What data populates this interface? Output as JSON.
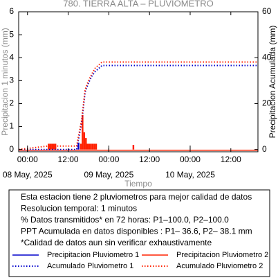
{
  "chart_data": {
    "type": "line",
    "title": "780. TIERRA ALTA – PLUVIOMETRO",
    "x_label": "Tiempo",
    "y_label": "Precipitacion 1 minutos (mm)",
    "y2_label": "Precipitacion Acumulada (mm)",
    "xlim": [
      -2.6,
      68
    ],
    "xticks": [
      {
        "value": 0,
        "label": "00:00"
      },
      {
        "value": 12,
        "label": "12:00"
      },
      {
        "value": 24,
        "label": "00:00"
      },
      {
        "value": 36,
        "label": "12:00"
      },
      {
        "value": 48,
        "label": "00:00"
      },
      {
        "value": 60,
        "label": "12:00"
      }
    ],
    "xdates": [
      {
        "value": 0,
        "label": "08 May, 2025"
      },
      {
        "value": 24,
        "label": "09 May, 2025"
      },
      {
        "value": 48,
        "label": "10 May, 2025"
      }
    ],
    "ylim": [
      -0.1,
      6
    ],
    "yticks": [
      0,
      1,
      2,
      3,
      4,
      5,
      6
    ],
    "y2lim": [
      -1,
      60
    ],
    "y2ticks": [
      0,
      20,
      40,
      60
    ],
    "series": [
      {
        "name": "Precipitacion Pluviometro 1",
        "color": "#0000cc",
        "style": "bar",
        "x": [
          14.8
        ],
        "values": [
          0.3
        ]
      },
      {
        "name": "Precipitacion Pluviometro 2",
        "color": "#ff2000",
        "style": "bar",
        "x": [
          6,
          6.5,
          7,
          7.5,
          8,
          15.5,
          16,
          16.5,
          17,
          17.5,
          18,
          18.5,
          19,
          19.5,
          20,
          31
        ],
        "values": [
          0.25,
          0.25,
          0.25,
          0.25,
          0.25,
          0.25,
          1.5,
          0.75,
          0.5,
          0.25,
          0.25,
          0.25,
          0.25,
          0.25,
          0.25,
          0.2
        ]
      },
      {
        "name": "Acumulado Pluviometro 1",
        "color": "#0000cc",
        "style": "dotted",
        "axis": "y2",
        "x": [
          -2.6,
          14.5,
          16,
          17,
          18,
          19,
          20,
          22,
          68
        ],
        "values": [
          0,
          0,
          12,
          25,
          29,
          32,
          34,
          36.6,
          36.6
        ]
      },
      {
        "name": "Acumulado Pluviometro 2",
        "color": "#ff2000",
        "style": "dotted",
        "axis": "y2",
        "x": [
          -2.6,
          6,
          8,
          14.5,
          16,
          17,
          18,
          19,
          20,
          22,
          68
        ],
        "values": [
          0,
          1.5,
          1.5,
          1.5,
          13,
          26,
          30,
          33,
          35.5,
          38.1,
          38.1
        ]
      }
    ]
  },
  "info_box": {
    "lines": [
      "Esta estacion tiene 2 pluviometros para mejor calidad de datos",
      "Resolucion temporal: 1 minutos",
      "% Datos transmitidos* en 72 horas: P1–100.0, P2–100.0",
      "PPT Acumulada en datos disponibles : P1– 36.6, P2– 38.1 mm",
      "*Calidad de datos aun sin verificar exhaustivamente"
    ]
  }
}
